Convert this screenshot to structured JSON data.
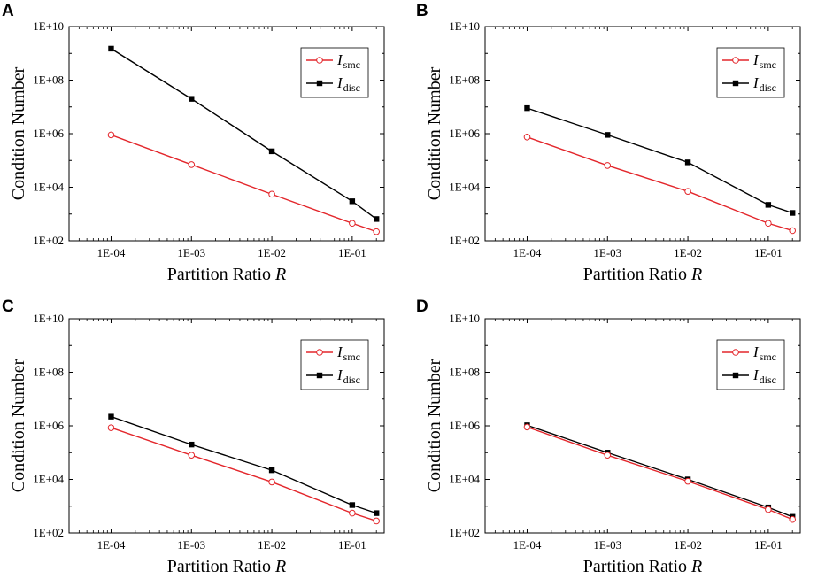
{
  "figure": {
    "y_axis_title": "Condition Number",
    "x_axis_title_prefix": "Partition Ratio ",
    "x_axis_title_var": "R",
    "x_tick_labels": [
      "1E-04",
      "1E-03",
      "1E-02",
      "1E-01"
    ],
    "y_tick_labels": [
      "1E+02",
      "1E+04",
      "1E+06",
      "1E+08",
      "1E+10"
    ],
    "series_colors": {
      "smc": "#e3262b",
      "disc": "#000000"
    },
    "legend": {
      "smc": {
        "main": "I",
        "sub": "smc"
      },
      "disc": {
        "main": "I",
        "sub": "disc"
      }
    }
  },
  "chart_data": [
    {
      "panel": "A",
      "type": "line",
      "x_scale": "log",
      "y_scale": "log",
      "x": [
        0.0001,
        0.001,
        0.01,
        0.1,
        0.2
      ],
      "xlim": [
        3e-05,
        0.25
      ],
      "ylim": [
        100,
        10000000000
      ],
      "xlabel": "Partition Ratio R",
      "ylabel": "Condition Number",
      "legend_position": "top-right",
      "series": [
        {
          "key": "smc",
          "name": "I_smc",
          "marker": "open-circle",
          "values": [
            900000,
            70000,
            5500,
            450,
            220
          ]
        },
        {
          "key": "disc",
          "name": "I_disc",
          "marker": "filled-square",
          "values": [
            1500000000,
            20000000,
            220000,
            3000,
            650
          ]
        }
      ]
    },
    {
      "panel": "B",
      "type": "line",
      "x_scale": "log",
      "y_scale": "log",
      "x": [
        0.0001,
        0.001,
        0.01,
        0.1,
        0.2
      ],
      "xlim": [
        3e-05,
        0.25
      ],
      "ylim": [
        100,
        10000000000
      ],
      "xlabel": "Partition Ratio R",
      "ylabel": "Condition Number",
      "legend_position": "top-right",
      "series": [
        {
          "key": "smc",
          "name": "I_smc",
          "marker": "open-circle",
          "values": [
            750000,
            65000,
            7000,
            450,
            240
          ]
        },
        {
          "key": "disc",
          "name": "I_disc",
          "marker": "filled-square",
          "values": [
            9000000,
            900000,
            85000,
            2200,
            1100
          ]
        }
      ]
    },
    {
      "panel": "C",
      "type": "line",
      "x_scale": "log",
      "y_scale": "log",
      "x": [
        0.0001,
        0.001,
        0.01,
        0.1,
        0.2
      ],
      "xlim": [
        3e-05,
        0.25
      ],
      "ylim": [
        100,
        10000000000
      ],
      "xlabel": "Partition Ratio R",
      "ylabel": "Condition Number",
      "legend_position": "top-right",
      "series": [
        {
          "key": "smc",
          "name": "I_smc",
          "marker": "open-circle",
          "values": [
            850000,
            80000,
            8000,
            550,
            280
          ]
        },
        {
          "key": "disc",
          "name": "I_disc",
          "marker": "filled-square",
          "values": [
            2200000,
            200000,
            22000,
            1100,
            550
          ]
        }
      ]
    },
    {
      "panel": "D",
      "type": "line",
      "x_scale": "log",
      "y_scale": "log",
      "x": [
        0.0001,
        0.001,
        0.01,
        0.1,
        0.2
      ],
      "xlim": [
        3e-05,
        0.25
      ],
      "ylim": [
        100,
        10000000000
      ],
      "xlabel": "Partition Ratio R",
      "ylabel": "Condition Number",
      "legend_position": "top-right",
      "series": [
        {
          "key": "smc",
          "name": "I_smc",
          "marker": "open-circle",
          "values": [
            900000,
            80000,
            8500,
            750,
            320
          ]
        },
        {
          "key": "disc",
          "name": "I_disc",
          "marker": "filled-square",
          "values": [
            1050000,
            100000,
            10000,
            900,
            400
          ]
        }
      ]
    }
  ]
}
